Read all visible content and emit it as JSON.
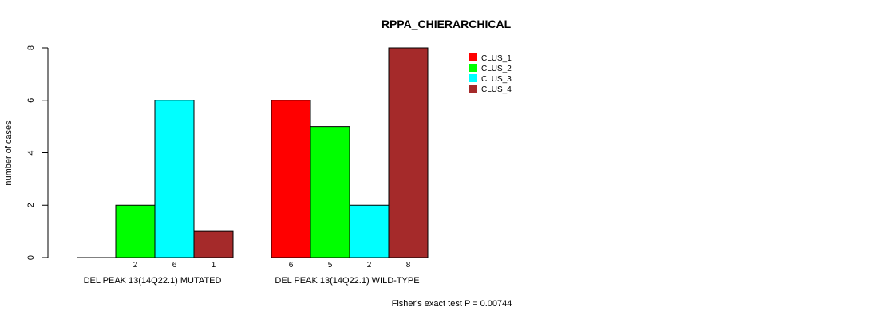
{
  "chart_data": {
    "type": "bar",
    "title": "RPPA_CHIERARCHICAL",
    "ylabel": "number of cases",
    "ylim": [
      0,
      8
    ],
    "yticks": [
      0,
      2,
      4,
      6,
      8
    ],
    "groups": [
      "DEL PEAK 13(14Q22.1) MUTATED",
      "DEL PEAK 13(14Q22.1) WILD-TYPE"
    ],
    "series": [
      {
        "name": "CLUS_1",
        "color": "#ff0000",
        "values": [
          0,
          6
        ]
      },
      {
        "name": "CLUS_2",
        "color": "#00ff00",
        "values": [
          2,
          5
        ]
      },
      {
        "name": "CLUS_3",
        "color": "#00ffff",
        "values": [
          6,
          2
        ]
      },
      {
        "name": "CLUS_4",
        "color": "#a52a2a",
        "values": [
          1,
          8
        ]
      }
    ],
    "count_labels": [
      [
        "",
        "2",
        "6",
        "1"
      ],
      [
        "6",
        "5",
        "2",
        "8"
      ]
    ],
    "legend_position": "top-right",
    "annotation": "Fisher's exact test P = 0.00744"
  }
}
